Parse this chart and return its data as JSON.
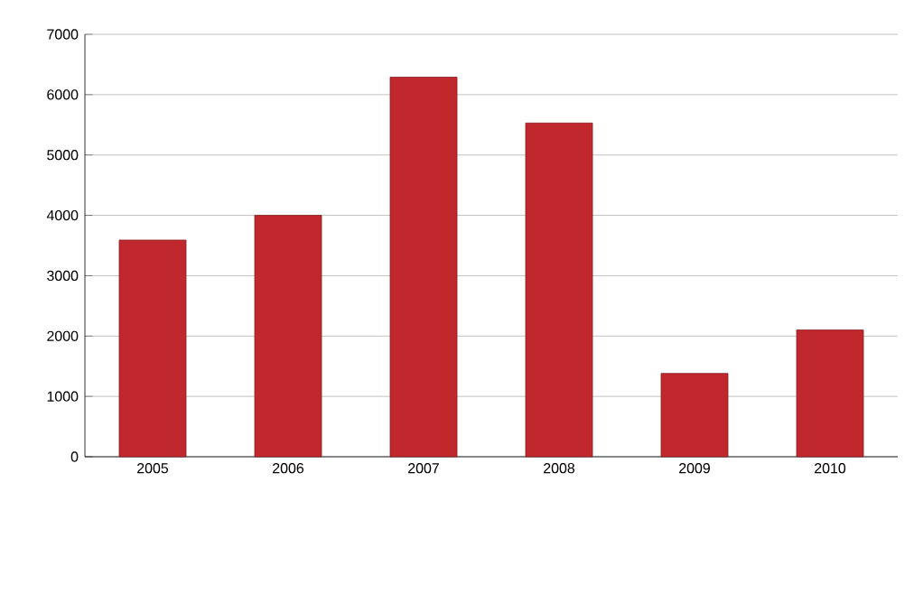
{
  "chart_data": {
    "type": "bar",
    "categories": [
      "2005",
      "2006",
      "2007",
      "2008",
      "2009",
      "2010"
    ],
    "values": [
      3590,
      4000,
      6290,
      5530,
      1380,
      2100
    ],
    "color": "#c0282d",
    "ylim": [
      0,
      7000
    ],
    "yticks": [
      0,
      1000,
      2000,
      3000,
      4000,
      5000,
      6000,
      7000
    ],
    "grid": "y"
  }
}
